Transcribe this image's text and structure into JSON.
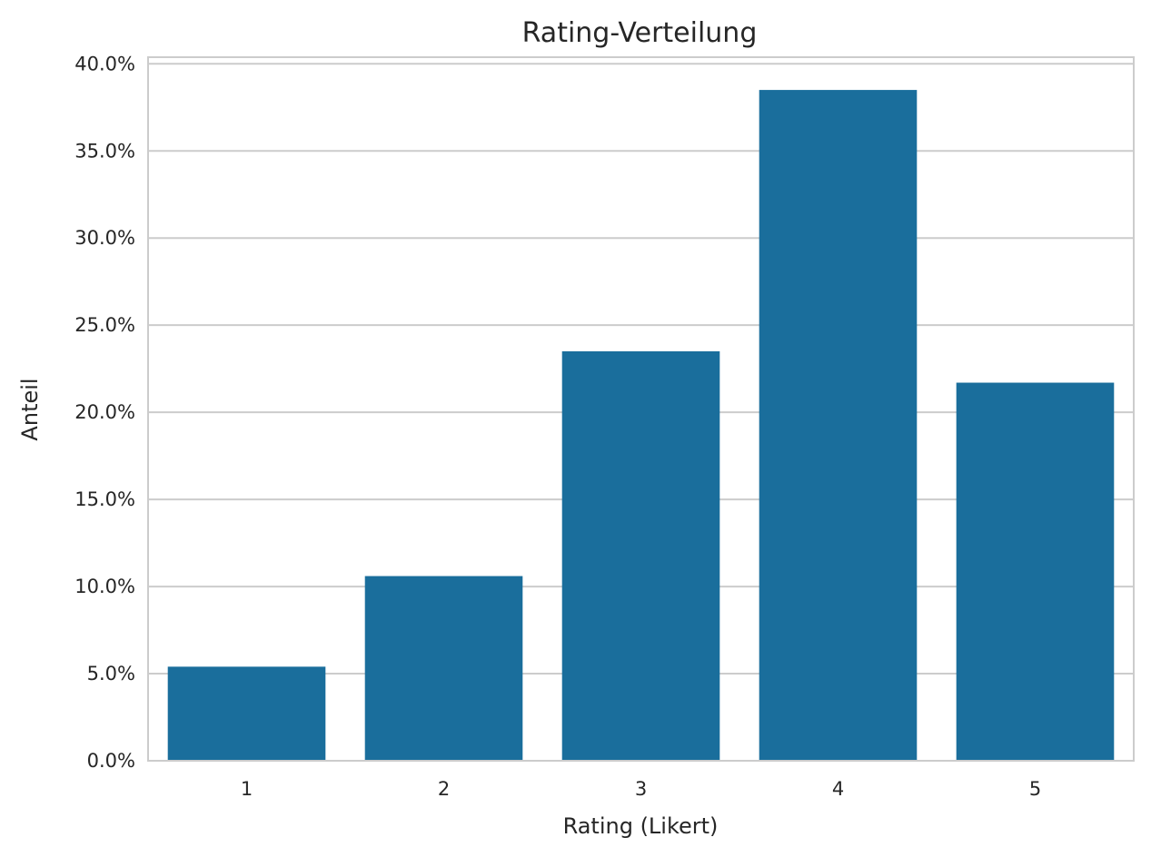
{
  "chart_data": {
    "type": "bar",
    "title": "Rating-Verteilung",
    "xlabel": "Rating (Likert)",
    "ylabel": "Anteil",
    "categories": [
      "1",
      "2",
      "3",
      "4",
      "5"
    ],
    "values": [
      0.054,
      0.106,
      0.235,
      0.385,
      0.217
    ],
    "ylim": [
      0,
      0.4
    ],
    "yticks": [
      0.0,
      0.05,
      0.1,
      0.15,
      0.2,
      0.25,
      0.3,
      0.35,
      0.4
    ],
    "ytick_labels": [
      "0.0%",
      "5.0%",
      "10.0%",
      "15.0%",
      "20.0%",
      "25.0%",
      "30.0%",
      "35.0%",
      "40.0%"
    ],
    "grid": "horizontal",
    "bar_color": "#1a6e9c",
    "grid_color": "#cccccc",
    "frame_color": "#cccccc"
  }
}
